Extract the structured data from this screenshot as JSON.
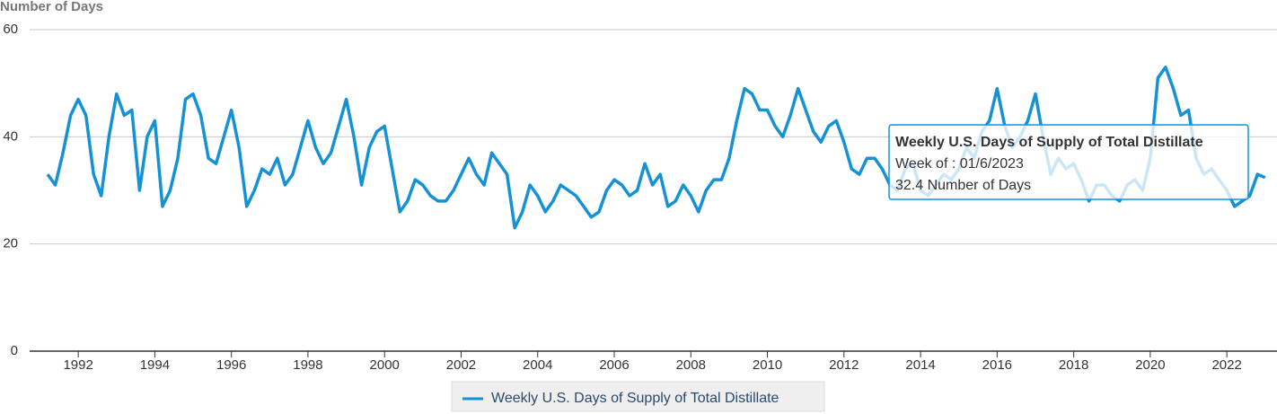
{
  "chart_data": {
    "type": "line",
    "y_axis_label": "Number of Days",
    "xlim": [
      1990.73,
      2023.31
    ],
    "xticks": [
      1992,
      1994,
      1996,
      1998,
      2000,
      2002,
      2004,
      2006,
      2008,
      2010,
      2012,
      2014,
      2016,
      2018,
      2020,
      2022
    ],
    "ylim": [
      0,
      60
    ],
    "yticks": [
      0,
      20,
      40,
      60
    ],
    "grid": true,
    "x": [
      1991.2,
      1991.4,
      1991.6,
      1991.8,
      1992,
      1992.2,
      1992.4,
      1992.6,
      1992.8,
      1993,
      1993.2,
      1993.4,
      1993.6,
      1993.8,
      1994,
      1994.2,
      1994.4,
      1994.6,
      1994.8,
      1995,
      1995.2,
      1995.4,
      1995.6,
      1995.8,
      1996,
      1996.2,
      1996.4,
      1996.6,
      1996.8,
      1997,
      1997.2,
      1997.4,
      1997.6,
      1997.8,
      1998,
      1998.2,
      1998.4,
      1998.6,
      1998.8,
      1999,
      1999.2,
      1999.4,
      1999.6,
      1999.8,
      2000,
      2000.2,
      2000.4,
      2000.6,
      2000.8,
      2001,
      2001.2,
      2001.4,
      2001.6,
      2001.8,
      2002,
      2002.2,
      2002.4,
      2002.6,
      2002.8,
      2003,
      2003.2,
      2003.4,
      2003.6,
      2003.8,
      2004,
      2004.2,
      2004.4,
      2004.6,
      2004.8,
      2005,
      2005.2,
      2005.4,
      2005.6,
      2005.8,
      2006,
      2006.2,
      2006.4,
      2006.6,
      2006.8,
      2007,
      2007.2,
      2007.4,
      2007.6,
      2007.8,
      2008,
      2008.2,
      2008.4,
      2008.6,
      2008.8,
      2009,
      2009.2,
      2009.4,
      2009.6,
      2009.8,
      2010,
      2010.2,
      2010.4,
      2010.6,
      2010.8,
      2011,
      2011.2,
      2011.4,
      2011.6,
      2011.8,
      2012,
      2012.2,
      2012.4,
      2012.6,
      2012.8,
      2013,
      2013.2,
      2013.4,
      2013.6,
      2013.8,
      2014,
      2014.2,
      2014.4,
      2014.6,
      2014.8,
      2015,
      2015.2,
      2015.4,
      2015.6,
      2015.8,
      2016,
      2016.2,
      2016.4,
      2016.6,
      2016.8,
      2017,
      2017.2,
      2017.4,
      2017.6,
      2017.8,
      2018,
      2018.2,
      2018.4,
      2018.6,
      2018.8,
      2019,
      2019.2,
      2019.4,
      2019.6,
      2019.8,
      2020,
      2020.2,
      2020.4,
      2020.6,
      2020.8,
      2021,
      2021.2,
      2021.4,
      2021.6,
      2021.8,
      2022,
      2022.2,
      2022.4,
      2022.6,
      2022.8,
      2023
    ],
    "series": [
      {
        "name": "Weekly U.S. Days of Supply of Total Distillate",
        "color": "#1592d6",
        "values": [
          33,
          31,
          37,
          44,
          47,
          44,
          33,
          29,
          40,
          48,
          44,
          45,
          30,
          40,
          43,
          27,
          30,
          36,
          47,
          48,
          44,
          36,
          35,
          40,
          45,
          38,
          27,
          30,
          34,
          33,
          36,
          31,
          33,
          38,
          43,
          38,
          35,
          37,
          42,
          47,
          40,
          31,
          38,
          41,
          42,
          34,
          26,
          28,
          32,
          31,
          29,
          28,
          28,
          30,
          33,
          36,
          33,
          31,
          37,
          35,
          33,
          23,
          26,
          31,
          29,
          26,
          28,
          31,
          30,
          29,
          27,
          25,
          26,
          30,
          32,
          31,
          29,
          30,
          35,
          31,
          33,
          27,
          28,
          31,
          29,
          26,
          30,
          32,
          32,
          36,
          43,
          49,
          48,
          45,
          45,
          42,
          40,
          44,
          49,
          45,
          41,
          39,
          42,
          43,
          39,
          34,
          33,
          36,
          36,
          34,
          31,
          30,
          34,
          35,
          30,
          29,
          31,
          33,
          32,
          34,
          38,
          36,
          41,
          43,
          49,
          42,
          38,
          40,
          43,
          48,
          40,
          33,
          36,
          34,
          35,
          32,
          28,
          31,
          31,
          29,
          28,
          31,
          32,
          30,
          36,
          51,
          53,
          49,
          44,
          45,
          36,
          33,
          34,
          32,
          30,
          27,
          28,
          29,
          33,
          32.4
        ]
      }
    ],
    "tooltip": {
      "header": "Weekly U.S. Days of Supply of Total Distillate",
      "lines": [
        "Week of : 01/6/2023",
        "32.4 Number of Days"
      ]
    }
  }
}
